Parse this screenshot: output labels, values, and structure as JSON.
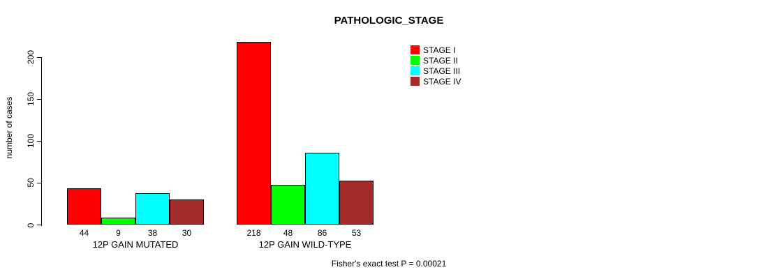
{
  "chart_data": {
    "type": "bar",
    "title": "PATHOLOGIC_STAGE",
    "ylabel": "number of cases",
    "xlabel": "",
    "categories": [
      "12P GAIN MUTATED",
      "12P GAIN WILD-TYPE"
    ],
    "series": [
      {
        "name": "STAGE I",
        "color": "#ff0000",
        "values": [
          44,
          218
        ]
      },
      {
        "name": "STAGE II",
        "color": "#00ff00",
        "values": [
          9,
          48
        ]
      },
      {
        "name": "STAGE III",
        "color": "#00ffff",
        "values": [
          38,
          86
        ]
      },
      {
        "name": "STAGE IV",
        "color": "#a52a2a",
        "values": [
          30,
          53
        ]
      }
    ],
    "yticks": [
      0,
      50,
      100,
      150,
      200
    ],
    "ylim": [
      0,
      220
    ],
    "grid": false,
    "bar_value_labels_shown": true,
    "legend_position": "top-right",
    "annotation": "Fisher's exact test P = 0.00021",
    "axis_color": "#000000",
    "background_color": "#ffffff"
  }
}
